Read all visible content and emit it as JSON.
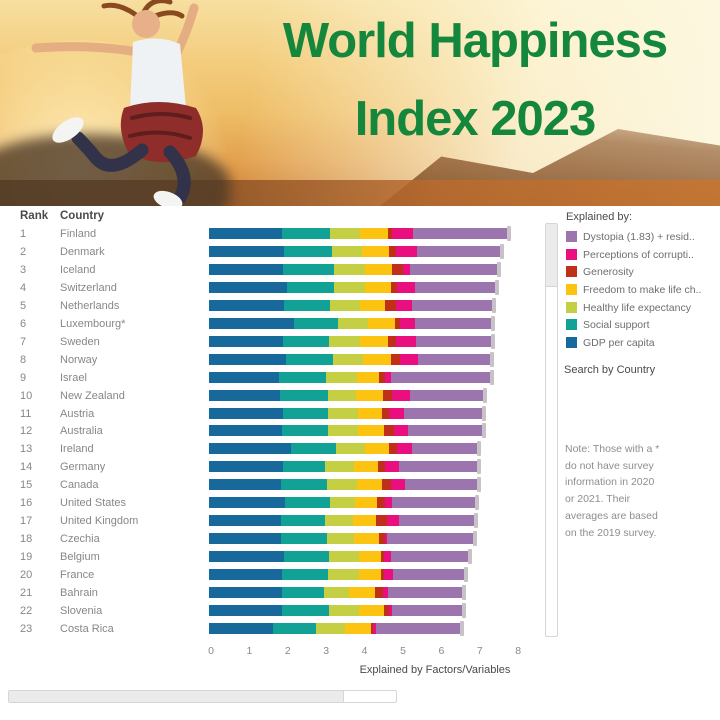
{
  "header": {
    "title_line1": "World Happiness",
    "title_line2": "Index 2023",
    "title_color": "#15873c",
    "photo": "woman-jumping-at-sunset"
  },
  "table": {
    "rank_header": "Rank",
    "country_header": "Country"
  },
  "legend": {
    "title": "Explained by:",
    "items": [
      {
        "label": "Dystopia (1.83) + resid..",
        "color": "#9c74ae"
      },
      {
        "label": "Perceptions of corrupti..",
        "color": "#e90f7e"
      },
      {
        "label": "Generosity",
        "color": "#c03018"
      },
      {
        "label": "Freedom to make life ch..",
        "color": "#fcc411"
      },
      {
        "label": "Healthy life expectancy",
        "color": "#c5cf43"
      },
      {
        "label": "Social support",
        "color": "#12a295"
      },
      {
        "label": "GDP per capita",
        "color": "#17689b"
      }
    ]
  },
  "search_label": "Search by Country",
  "note": {
    "lines": [
      "Note: Those with a *",
      "do not have survey",
      "information in 2020",
      "or 2021. Their",
      "averages are based",
      "on the 2019 survey."
    ]
  },
  "chart_data": {
    "type": "bar",
    "stacked": true,
    "orientation": "horizontal",
    "title": "World Happiness Index 2023",
    "xlabel": "Explained by Factors/Variables",
    "xlim": [
      0,
      8
    ],
    "x_ticks": [
      0,
      1,
      2,
      3,
      4,
      5,
      6,
      7,
      8
    ],
    "grid": false,
    "legend_position": "right",
    "series": [
      {
        "name": "GDP per capita",
        "color": "#17689b"
      },
      {
        "name": "Social support",
        "color": "#12a295"
      },
      {
        "name": "Healthy life expectancy",
        "color": "#c5cf43"
      },
      {
        "name": "Freedom to make life choices",
        "color": "#fcc411"
      },
      {
        "name": "Generosity",
        "color": "#c03018"
      },
      {
        "name": "Perceptions of corruption",
        "color": "#e90f7e"
      },
      {
        "name": "Dystopia (1.83) + residual",
        "color": "#9c74ae"
      }
    ],
    "rows": [
      {
        "rank": 1,
        "country": "Finland",
        "score": 7.821,
        "segments": [
          1.892,
          1.258,
          0.775,
          0.736,
          0.109,
          0.534,
          2.517
        ]
      },
      {
        "rank": 2,
        "country": "Denmark",
        "score": 7.636,
        "segments": [
          1.953,
          1.243,
          0.777,
          0.719,
          0.188,
          0.532,
          2.226
        ]
      },
      {
        "rank": 3,
        "country": "Iceland",
        "score": 7.557,
        "segments": [
          1.936,
          1.32,
          0.803,
          0.718,
          0.27,
          0.191,
          2.32
        ]
      },
      {
        "rank": 4,
        "country": "Switzerland",
        "score": 7.512,
        "segments": [
          2.026,
          1.226,
          0.822,
          0.677,
          0.147,
          0.461,
          2.153
        ]
      },
      {
        "rank": 5,
        "country": "Netherlands",
        "score": 7.415,
        "segments": [
          1.945,
          1.206,
          0.787,
          0.651,
          0.271,
          0.419,
          2.137
        ]
      },
      {
        "rank": 6,
        "country": "Luxembourg*",
        "score": 7.404,
        "segments": [
          2.209,
          1.155,
          0.79,
          0.7,
          0.12,
          0.388,
          2.042
        ]
      },
      {
        "rank": 7,
        "country": "Sweden",
        "score": 7.384,
        "segments": [
          1.92,
          1.204,
          0.803,
          0.724,
          0.218,
          0.512,
          2.003
        ]
      },
      {
        "rank": 8,
        "country": "Norway",
        "score": 7.365,
        "segments": [
          1.997,
          1.239,
          0.786,
          0.728,
          0.217,
          0.474,
          1.924
        ]
      },
      {
        "rank": 9,
        "country": "Israel",
        "score": 7.364,
        "segments": [
          1.826,
          1.221,
          0.818,
          0.568,
          0.155,
          0.143,
          2.633
        ]
      },
      {
        "rank": 10,
        "country": "New Zealand",
        "score": 7.2,
        "segments": [
          1.852,
          1.235,
          0.752,
          0.68,
          0.245,
          0.483,
          1.953
        ]
      },
      {
        "rank": 11,
        "country": "Austria",
        "score": 7.163,
        "segments": [
          1.931,
          1.165,
          0.774,
          0.623,
          0.191,
          0.385,
          2.094
        ]
      },
      {
        "rank": 12,
        "country": "Australia",
        "score": 7.162,
        "segments": [
          1.9,
          1.203,
          0.772,
          0.681,
          0.258,
          0.38,
          1.968
        ]
      },
      {
        "rank": 13,
        "country": "Ireland",
        "score": 7.041,
        "segments": [
          2.129,
          1.166,
          0.779,
          0.627,
          0.19,
          0.408,
          1.742
        ]
      },
      {
        "rank": 14,
        "country": "Germany",
        "score": 7.034,
        "segments": [
          1.924,
          1.088,
          0.776,
          0.611,
          0.177,
          0.375,
          2.083
        ]
      },
      {
        "rank": 15,
        "country": "Canada",
        "score": 7.025,
        "segments": [
          1.886,
          1.188,
          0.783,
          0.659,
          0.217,
          0.368,
          1.924
        ]
      },
      {
        "rank": 16,
        "country": "United States",
        "score": 6.977,
        "segments": [
          1.982,
          1.182,
          0.628,
          0.574,
          0.22,
          0.177,
          2.214
        ]
      },
      {
        "rank": 17,
        "country": "United Kingdom",
        "score": 6.943,
        "segments": [
          1.867,
          1.143,
          0.75,
          0.597,
          0.267,
          0.329,
          1.99
        ]
      },
      {
        "rank": 18,
        "country": "Czechia",
        "score": 6.92,
        "segments": [
          1.871,
          1.202,
          0.711,
          0.656,
          0.139,
          0.057,
          2.284
        ]
      },
      {
        "rank": 19,
        "country": "Belgium",
        "score": 6.805,
        "segments": [
          1.95,
          1.176,
          0.771,
          0.576,
          0.088,
          0.17,
          2.074
        ]
      },
      {
        "rank": 20,
        "country": "France",
        "score": 6.687,
        "segments": [
          1.91,
          1.183,
          0.806,
          0.581,
          0.077,
          0.246,
          1.884
        ]
      },
      {
        "rank": 21,
        "country": "Bahrain",
        "score": 6.647,
        "segments": [
          1.904,
          1.078,
          0.654,
          0.685,
          0.207,
          0.145,
          1.974
        ]
      },
      {
        "rank": 22,
        "country": "Slovenia",
        "score": 6.63,
        "segments": [
          1.89,
          1.226,
          0.786,
          0.662,
          0.128,
          0.08,
          1.858
        ]
      },
      {
        "rank": 23,
        "country": "Costa Rica",
        "score": 6.582,
        "segments": [
          1.659,
          1.132,
          0.76,
          0.663,
          0.069,
          0.079,
          2.22
        ]
      }
    ]
  }
}
